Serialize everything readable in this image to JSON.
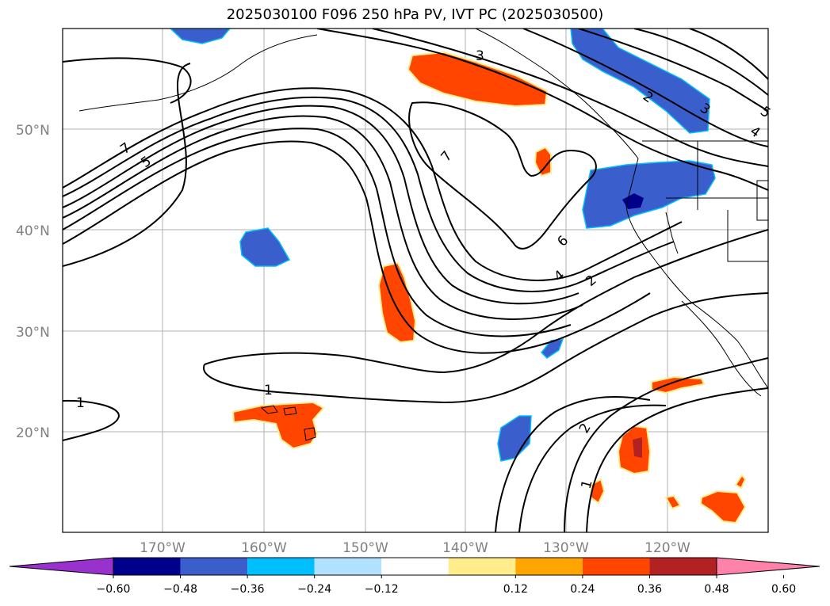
{
  "title": "2025030100 F096 250 hPa PV, IVT PC (2025030500)",
  "lat_labels": [
    "50°N",
    "40°N",
    "30°N",
    "20°N"
  ],
  "lon_labels": [
    "170°W",
    "160°W",
    "150°W",
    "140°W",
    "130°W",
    "120°W"
  ],
  "colorbar": {
    "colors": [
      "#9932cc",
      "#00008b",
      "#3a5fcd",
      "#00bfff",
      "#b0e2ff",
      "#ffffff",
      "#ffec8b",
      "#ffa500",
      "#ff4500",
      "#b22222",
      "#ff82ab"
    ],
    "tick_labels": [
      "−0.60",
      "−0.48",
      "−0.36",
      "−0.24",
      "−0.12",
      "0.12",
      "0.24",
      "0.36",
      "0.48",
      "0.60"
    ]
  },
  "contour_labels": [
    "7",
    "5",
    "3",
    "7",
    "6",
    "4",
    "2",
    "2",
    "3",
    "5",
    "4",
    "1",
    "1",
    "2",
    "1"
  ]
}
